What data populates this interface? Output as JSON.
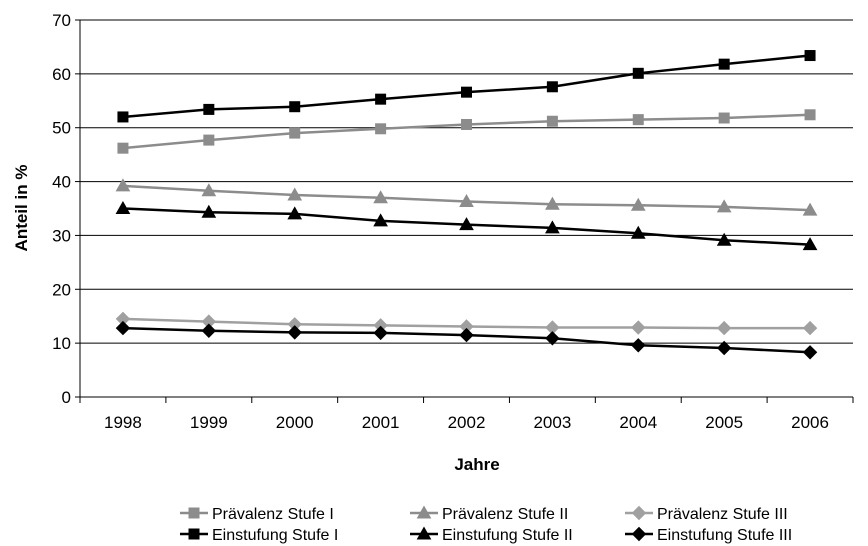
{
  "chart_data": {
    "type": "line",
    "title": "",
    "xlabel": "Jahre",
    "ylabel": "Anteil in %",
    "ylim": [
      0,
      70
    ],
    "yticks": [
      0,
      10,
      20,
      30,
      40,
      50,
      60,
      70
    ],
    "grid": "horizontal",
    "legend_position": "bottom",
    "categories": [
      "1998",
      "1999",
      "2000",
      "2001",
      "2002",
      "2003",
      "2004",
      "2005",
      "2006"
    ],
    "series": [
      {
        "name": "Prävalenz Stufe I",
        "marker": "square",
        "color": "#8c8c8c",
        "values": [
          46.2,
          47.7,
          49.0,
          49.8,
          50.6,
          51.2,
          51.5,
          51.8,
          52.4
        ]
      },
      {
        "name": "Prävalenz Stufe II",
        "marker": "triangle",
        "color": "#8c8c8c",
        "values": [
          39.2,
          38.3,
          37.5,
          37.0,
          36.3,
          35.8,
          35.6,
          35.3,
          34.7
        ]
      },
      {
        "name": "Prävalenz Stufe III",
        "marker": "diamond",
        "color": "#a0a0a0",
        "values": [
          14.5,
          14.0,
          13.5,
          13.3,
          13.1,
          12.9,
          12.9,
          12.8,
          12.8
        ]
      },
      {
        "name": "Einstufung Stufe I",
        "marker": "square",
        "color": "#000000",
        "values": [
          52.0,
          53.4,
          53.9,
          55.3,
          56.6,
          57.6,
          60.1,
          61.8,
          63.4
        ]
      },
      {
        "name": "Einstufung Stufe II",
        "marker": "triangle",
        "color": "#000000",
        "values": [
          35.0,
          34.3,
          34.0,
          32.7,
          32.0,
          31.4,
          30.4,
          29.1,
          28.3
        ]
      },
      {
        "name": "Einstufung Stufe III",
        "marker": "diamond",
        "color": "#000000",
        "values": [
          12.8,
          12.3,
          12.0,
          11.9,
          11.5,
          10.9,
          9.6,
          9.1,
          8.3
        ]
      }
    ]
  }
}
